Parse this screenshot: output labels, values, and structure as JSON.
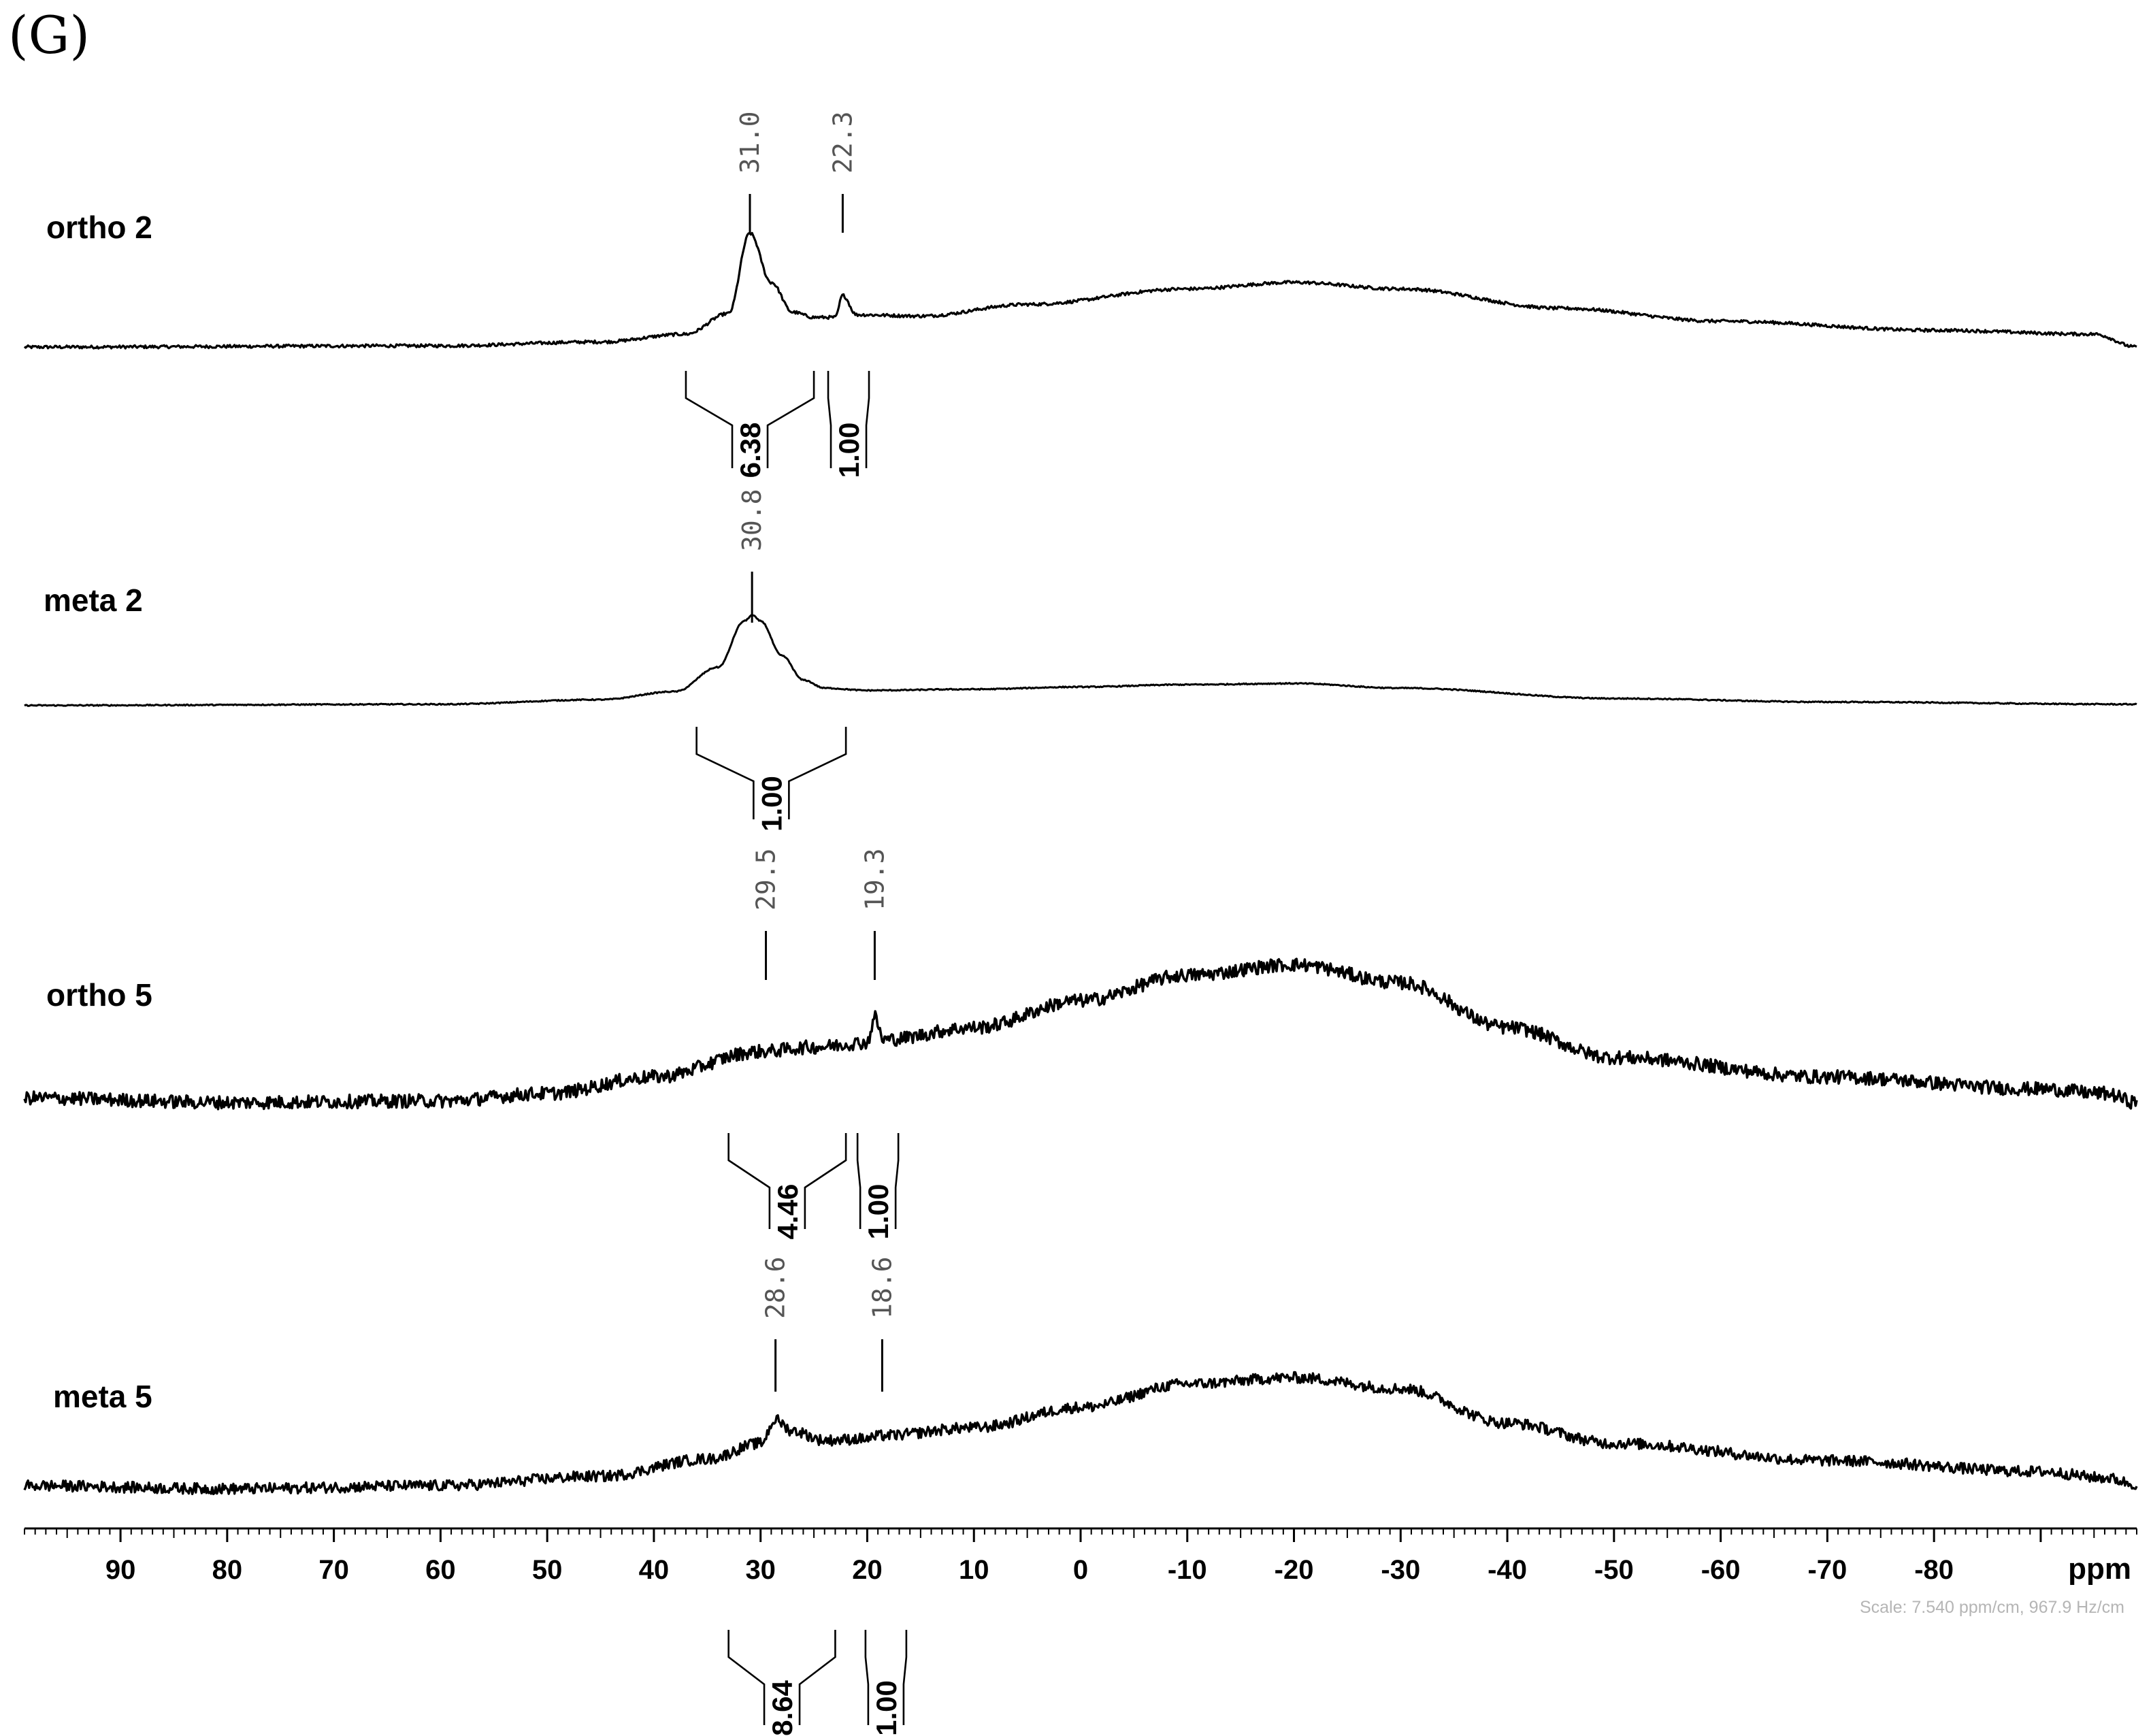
{
  "panel_label": "(G)",
  "chart_data": {
    "type": "line",
    "title": "",
    "xlabel": "ppm",
    "ylabel": "",
    "x_reversed": true,
    "xlim": [
      99,
      -99
    ],
    "x_ticks": [
      90,
      80,
      70,
      60,
      50,
      40,
      30,
      20,
      10,
      0,
      -10,
      -20,
      -30,
      -40,
      -50,
      -60,
      -70,
      -80
    ],
    "x_tick_labels": [
      "90",
      "80",
      "70",
      "60",
      "50",
      "40",
      "30",
      "20",
      "10",
      "0",
      "-10",
      "-20",
      "-30",
      "-40",
      "-50",
      "-60",
      "-70",
      "-80"
    ],
    "grid": false,
    "scale_note": "Scale: 7.540 ppm/cm, 967.9 Hz/cm",
    "series": [
      {
        "name": "ortho 2",
        "noise": 0.012,
        "profile": [
          [
            99,
            0.0
          ],
          [
            60,
            0.01
          ],
          [
            45,
            0.04
          ],
          [
            37,
            0.1
          ],
          [
            33,
            0.26
          ],
          [
            31,
            0.88
          ],
          [
            29,
            0.5
          ],
          [
            27,
            0.27
          ],
          [
            25,
            0.23
          ],
          [
            23,
            0.23
          ],
          [
            22.3,
            0.4
          ],
          [
            21,
            0.25
          ],
          [
            15,
            0.24
          ],
          [
            5,
            0.33
          ],
          [
            -10,
            0.45
          ],
          [
            -20,
            0.5
          ],
          [
            -30,
            0.45
          ],
          [
            -45,
            0.3
          ],
          [
            -60,
            0.2
          ],
          [
            -80,
            0.13
          ],
          [
            -95,
            0.1
          ],
          [
            -99,
            0.0
          ]
        ],
        "peaks": [
          {
            "ppm": 31.0,
            "label": "31.0"
          },
          {
            "ppm": 22.3,
            "label": "22.3"
          }
        ],
        "integrals": [
          {
            "from": 37,
            "to": 25,
            "value": "6.38"
          },
          {
            "from": 23,
            "to": 20.5,
            "value": "1.00"
          }
        ]
      },
      {
        "name": "meta 2",
        "noise": 0.005,
        "profile": [
          [
            99,
            0.02
          ],
          [
            60,
            0.03
          ],
          [
            45,
            0.07
          ],
          [
            38,
            0.14
          ],
          [
            34,
            0.35
          ],
          [
            31.5,
            0.75
          ],
          [
            30.8,
            0.8
          ],
          [
            30,
            0.75
          ],
          [
            28,
            0.45
          ],
          [
            26,
            0.24
          ],
          [
            24,
            0.17
          ],
          [
            20,
            0.15
          ],
          [
            10,
            0.16
          ],
          [
            0,
            0.18
          ],
          [
            -10,
            0.2
          ],
          [
            -20,
            0.21
          ],
          [
            -30,
            0.17
          ],
          [
            -50,
            0.08
          ],
          [
            -70,
            0.05
          ],
          [
            -99,
            0.03
          ]
        ],
        "peaks": [
          {
            "ppm": 30.8,
            "label": "30.8"
          }
        ],
        "integrals": [
          {
            "from": 36,
            "to": 22,
            "value": "1.00"
          }
        ]
      },
      {
        "name": "ortho 5",
        "noise": 0.045,
        "profile": [
          [
            99,
            0.03
          ],
          [
            80,
            0.0
          ],
          [
            60,
            0.01
          ],
          [
            50,
            0.06
          ],
          [
            40,
            0.17
          ],
          [
            30,
            0.34
          ],
          [
            25,
            0.37
          ],
          [
            20,
            0.4
          ],
          [
            19.3,
            0.57
          ],
          [
            18.5,
            0.42
          ],
          [
            10,
            0.5
          ],
          [
            0,
            0.68
          ],
          [
            -10,
            0.85
          ],
          [
            -20,
            0.92
          ],
          [
            -30,
            0.8
          ],
          [
            -40,
            0.5
          ],
          [
            -50,
            0.3
          ],
          [
            -70,
            0.17
          ],
          [
            -90,
            0.09
          ],
          [
            -96,
            0.06
          ],
          [
            -99,
            0.0
          ]
        ],
        "peaks": [
          {
            "ppm": 29.5,
            "label": "29.5"
          },
          {
            "ppm": 19.3,
            "label": "19.3"
          }
        ],
        "integrals": [
          {
            "from": 33,
            "to": 22,
            "value": "4.46"
          },
          {
            "from": 20,
            "to": 18,
            "value": "1.00"
          }
        ]
      },
      {
        "name": "meta 5",
        "noise": 0.035,
        "profile": [
          [
            99,
            0.03
          ],
          [
            80,
            0.01
          ],
          [
            60,
            0.03
          ],
          [
            45,
            0.09
          ],
          [
            35,
            0.2
          ],
          [
            30,
            0.3
          ],
          [
            28.6,
            0.45
          ],
          [
            27,
            0.38
          ],
          [
            24,
            0.32
          ],
          [
            20,
            0.33
          ],
          [
            18.6,
            0.35
          ],
          [
            10,
            0.4
          ],
          [
            0,
            0.53
          ],
          [
            -10,
            0.68
          ],
          [
            -20,
            0.72
          ],
          [
            -30,
            0.65
          ],
          [
            -40,
            0.43
          ],
          [
            -50,
            0.3
          ],
          [
            -70,
            0.19
          ],
          [
            -90,
            0.12
          ],
          [
            -96,
            0.08
          ],
          [
            -99,
            0.04
          ]
        ],
        "peaks": [
          {
            "ppm": 28.6,
            "label": "28.6"
          },
          {
            "ppm": 18.6,
            "label": "18.6"
          }
        ],
        "integrals": [
          {
            "from": 33,
            "to": 23,
            "value": "8.64"
          },
          {
            "from": 19.5,
            "to": 17,
            "value": "1.00"
          }
        ]
      }
    ]
  }
}
